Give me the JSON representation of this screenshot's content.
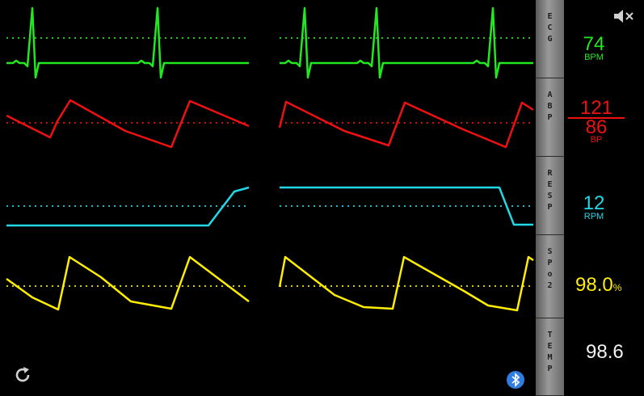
{
  "colors": {
    "ecg": "#22e822",
    "bp": "#ee1111",
    "resp": "#22d8e6",
    "spo2": "#ffee00",
    "temp": "#f2f2f2",
    "background": "#000000"
  },
  "tabs": [
    {
      "id": "ecg",
      "label": "ECG"
    },
    {
      "id": "abp",
      "label": "ABP"
    },
    {
      "id": "resp",
      "label": "RESP"
    },
    {
      "id": "spo2",
      "label": "SPo2"
    },
    {
      "id": "temp",
      "label": "TEMP"
    }
  ],
  "ecg": {
    "value": "74",
    "unit": "BPM"
  },
  "bp": {
    "systolic": "121",
    "diastolic": "86",
    "unit": "BP"
  },
  "resp": {
    "value": "12",
    "unit": "RPM"
  },
  "spo2": {
    "value": "98.0",
    "unit": "%"
  },
  "temp": {
    "value": "98.6"
  },
  "icons": {
    "mute": "speaker-muted-icon",
    "refresh": "refresh-icon",
    "bluetooth": "bluetooth-icon"
  }
}
